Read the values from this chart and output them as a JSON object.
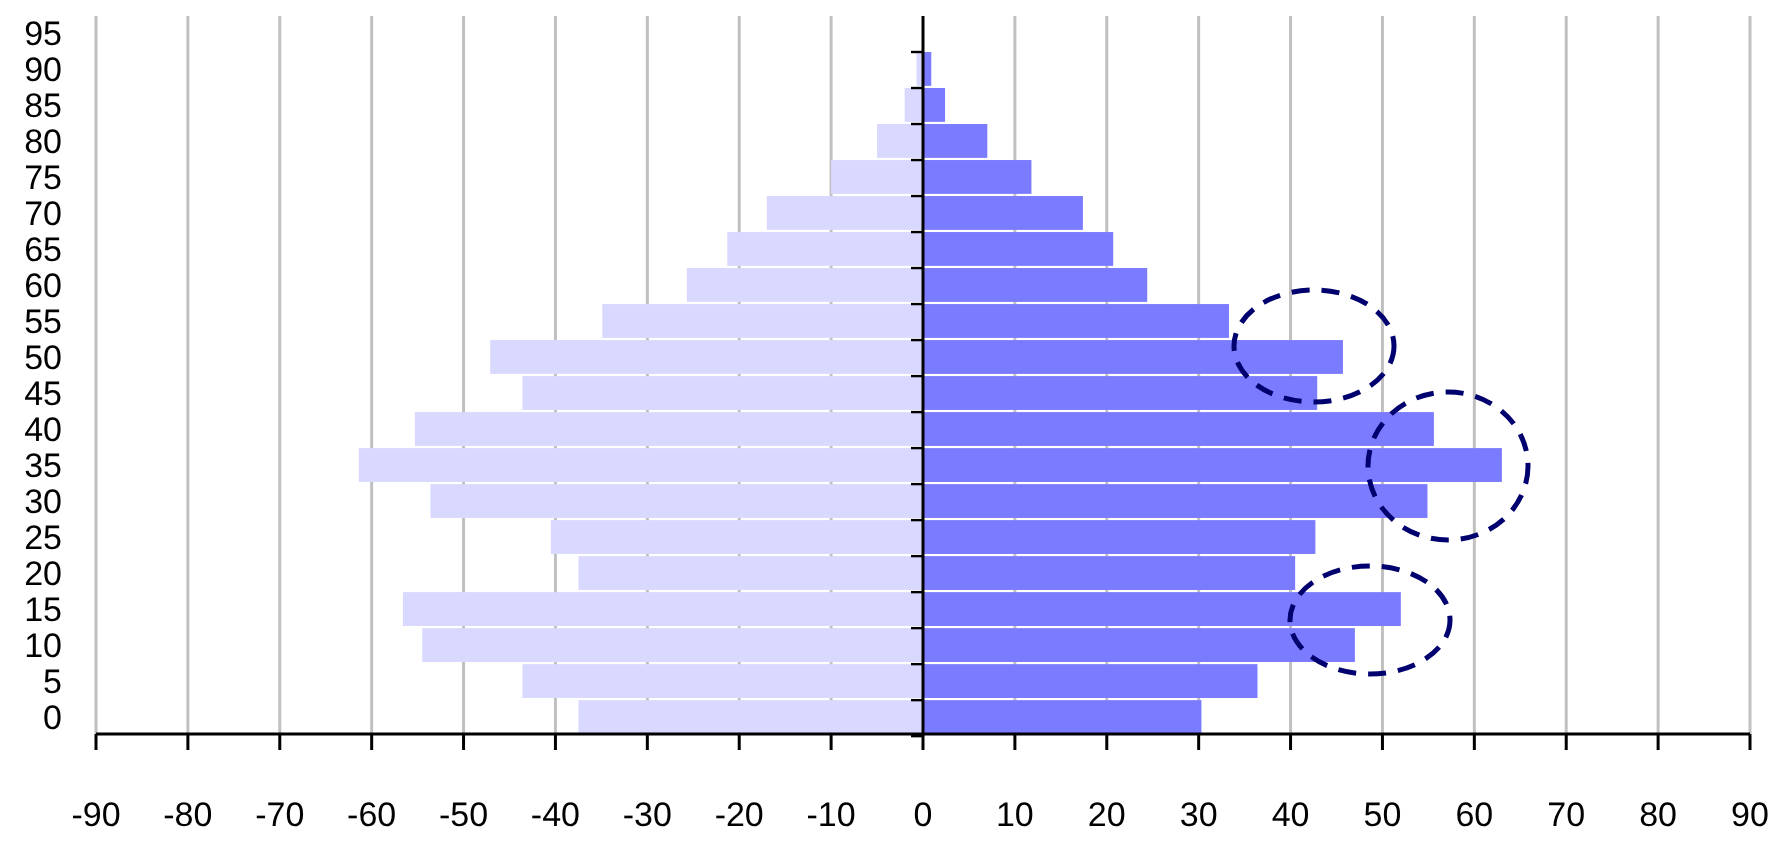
{
  "chart_data": {
    "type": "bar",
    "orientation": "horizontal",
    "stacked": true,
    "grid": "x",
    "categories": [
      "95",
      "90",
      "85",
      "80",
      "75",
      "70",
      "65",
      "60",
      "55",
      "50",
      "45",
      "40",
      "35",
      "30",
      "25",
      "20",
      "15",
      "10",
      "5",
      "0"
    ],
    "series": [
      {
        "color": "#d9d9ff",
        "values": [
          0,
          -0.7,
          -2,
          -5,
          -10,
          -17,
          -21.3,
          -25.7,
          -34.9,
          -47.1,
          -43.6,
          -55.3,
          -61.4,
          -53.6,
          -40.5,
          -37.5,
          -56.6,
          -54.5,
          -43.6,
          -37.5
        ]
      },
      {
        "color": "#7b7bff",
        "values": [
          0,
          0.9,
          2.4,
          7,
          11.8,
          17.4,
          20.7,
          24.4,
          33.3,
          45.7,
          42.9,
          55.6,
          63,
          54.9,
          42.7,
          40.5,
          52,
          47,
          36.4,
          30.3
        ]
      }
    ],
    "xlim": [
      -90,
      90
    ],
    "xticks": [
      -90,
      -80,
      -70,
      -60,
      -50,
      -40,
      -30,
      -20,
      -10,
      0,
      10,
      20,
      30,
      40,
      50,
      60,
      70,
      80,
      90
    ]
  }
}
